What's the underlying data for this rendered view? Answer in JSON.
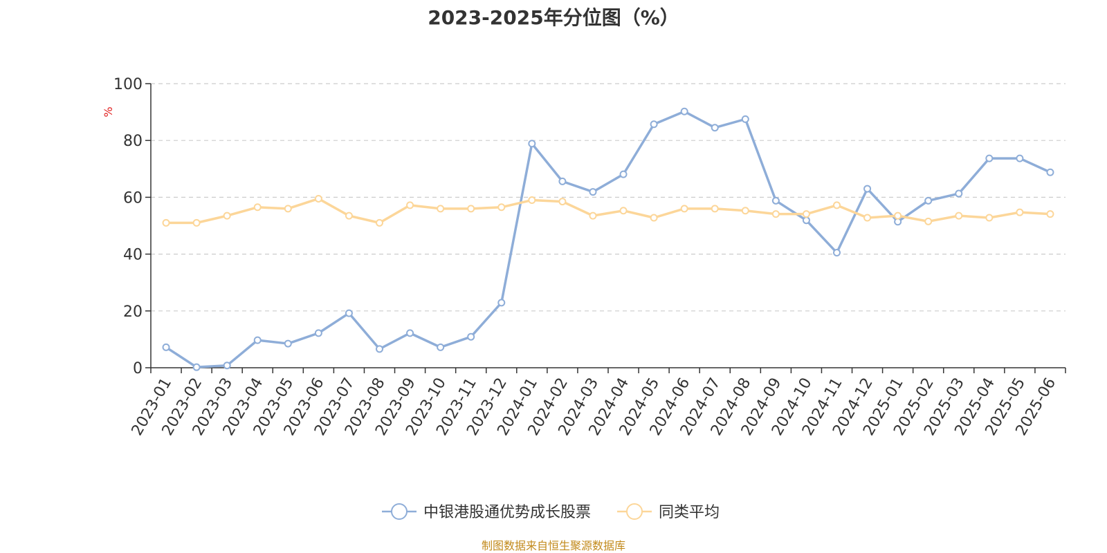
{
  "chart_data": {
    "type": "line",
    "title": "2023-2025年分位图（%）",
    "ylabel": "%",
    "xlabel": "",
    "ylim": [
      0,
      100
    ],
    "yticks": [
      0,
      20,
      40,
      60,
      80,
      100
    ],
    "grid": true,
    "legend_position": "bottom-center",
    "categories": [
      "2023-01",
      "2023-02",
      "2023-03",
      "2023-04",
      "2023-05",
      "2023-06",
      "2023-07",
      "2023-08",
      "2023-09",
      "2023-10",
      "2023-11",
      "2023-12",
      "2024-01",
      "2024-02",
      "2024-03",
      "2024-04",
      "2024-05",
      "2024-06",
      "2024-07",
      "2024-08",
      "2024-09",
      "2024-10",
      "2024-11",
      "2024-12",
      "2025-01",
      "2025-02",
      "2025-03",
      "2025-04",
      "2025-05",
      "2025-06"
    ],
    "series": [
      {
        "name": "中银港股通优势成长股票",
        "color": "#8eadd8",
        "values": [
          7.2,
          0.2,
          0.8,
          9.7,
          8.5,
          12.2,
          19.2,
          6.6,
          12.2,
          7.2,
          10.9,
          22.9,
          78.9,
          65.6,
          61.9,
          68.1,
          85.7,
          90.2,
          84.5,
          87.5,
          58.8,
          51.9,
          40.5,
          63.0,
          51.4,
          58.8,
          61.3,
          73.7,
          73.7,
          68.8
        ]
      },
      {
        "name": "同类平均",
        "color": "#fcd699",
        "values": [
          51.0,
          51.0,
          53.5,
          56.5,
          56.0,
          59.5,
          53.5,
          51.0,
          57.2,
          56.0,
          56.0,
          56.5,
          59.0,
          58.5,
          53.5,
          55.3,
          52.8,
          56.0,
          56.0,
          55.3,
          54.1,
          54.1,
          57.2,
          52.8,
          53.5,
          51.5,
          53.5,
          52.8,
          54.7,
          54.1
        ]
      }
    ]
  },
  "footer": {
    "source_note": "制图数据来自恒生聚源数据库"
  }
}
